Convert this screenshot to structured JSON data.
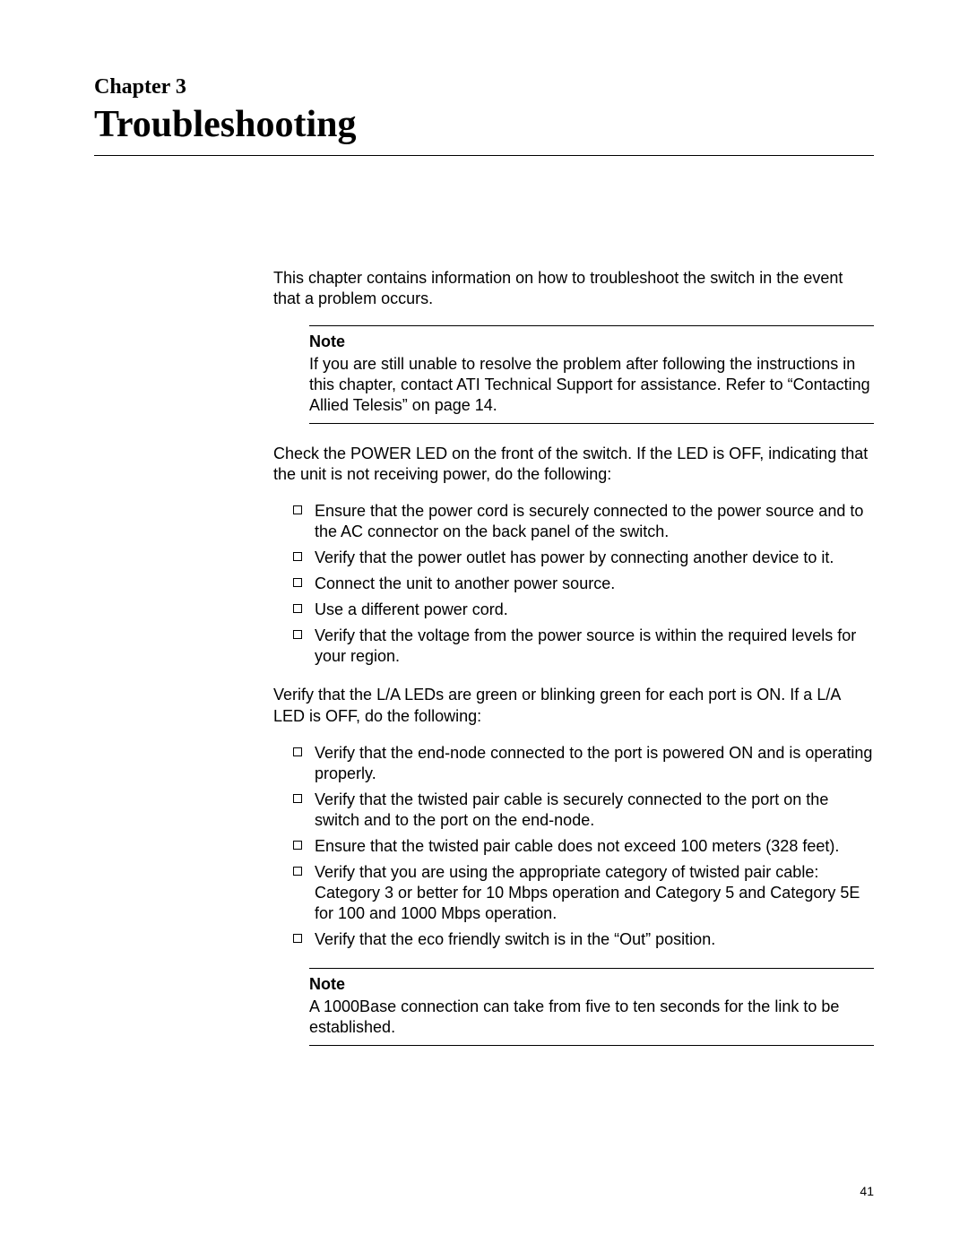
{
  "header": {
    "chapter_label": "Chapter 3",
    "chapter_title": "Troubleshooting"
  },
  "body": {
    "intro": "This chapter contains information on how to troubleshoot the switch in the event that a problem occurs.",
    "note1": {
      "label": "Note",
      "text": "If you are still unable to resolve the problem after following the instructions in this chapter, contact ATI Technical Support for assistance. Refer to “Contacting Allied Telesis” on page 14."
    },
    "para_power": "Check the POWER LED on the front of the switch. If the LED is OFF, indicating that the unit is not receiving power, do the following:",
    "list_power": [
      "Ensure that the power cord is securely connected to the power source and to the AC connector on the back panel of the switch.",
      "Verify that the power outlet has power by connecting another device to it.",
      "Connect the unit to another power source.",
      "Use a different power cord.",
      "Verify that the voltage from the power source is within the required levels for your region."
    ],
    "para_la": "Verify that the L/A LEDs are green or blinking green for each port is ON. If a L/A LED is OFF, do the following:",
    "list_la": [
      "Verify that the end-node connected to the port is powered ON and is operating properly.",
      "Verify that the twisted pair cable is securely connected to the port on the switch and to the port on the end-node.",
      "Ensure that the twisted pair cable does not exceed 100 meters (328 feet).",
      "Verify that you are using the appropriate category of twisted pair cable: Category 3 or better for 10 Mbps operation and Category 5 and Category 5E for 100 and 1000 Mbps operation.",
      "Verify that the eco friendly switch is in the “Out” position."
    ],
    "note2": {
      "label": "Note",
      "text": "A 1000Base connection can take from five to ten seconds for the link to be established."
    }
  },
  "page_number": "41"
}
